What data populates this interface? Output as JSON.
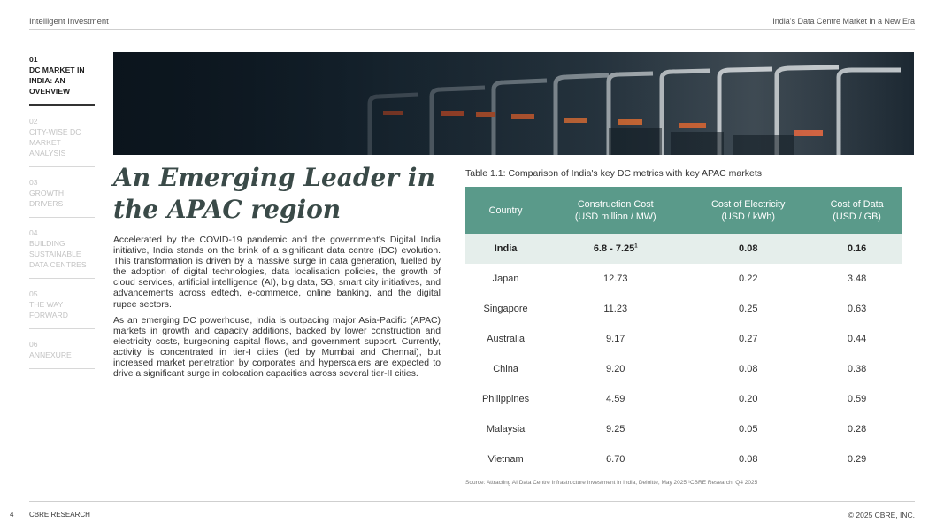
{
  "header": {
    "left": "Intelligent Investment",
    "right": "India's Data Centre Market in a New Era"
  },
  "nav": {
    "items": [
      {
        "num": "01",
        "label": "DC MARKET IN INDIA: AN OVERVIEW"
      },
      {
        "num": "02",
        "label": "CITY-WISE DC MARKET ANALYSIS"
      },
      {
        "num": "03",
        "label": "GROWTH DRIVERS"
      },
      {
        "num": "04",
        "label": "BUILDING SUSTAINABLE DATA CENTRES"
      },
      {
        "num": "05",
        "label": "THE WAY FORWARD"
      },
      {
        "num": "06",
        "label": "ANNEXURE"
      }
    ]
  },
  "title": "An Emerging Leader in the APAC region",
  "paragraphs": [
    "Accelerated by the COVID-19 pandemic and the government's Digital India initiative, India stands on the brink of a significant data centre (DC) evolution. This transformation is driven by a massive surge in data generation, fuelled by the adoption of digital technologies, data localisation policies, the growth of cloud services, artificial intelligence (AI), big data, 5G, smart city initiatives, and advancements across edtech, e-commerce, online banking, and the digital rupee sectors.",
    "As an emerging DC powerhouse, India is outpacing major Asia-Pacific (APAC) markets in growth and capacity additions, backed by lower construction and electricity costs, burgeoning capital flows, and government support. Currently, activity is concentrated in tier-I cities (led by Mumbai and Chennai), but increased market penetration by corporates and hyperscalers are expected to drive a significant surge in colocation capacities across several tier-II cities."
  ],
  "table": {
    "caption": "Table 1.1: Comparison of India's key DC metrics with key APAC markets",
    "headers": [
      {
        "line1": "Country",
        "line2": ""
      },
      {
        "line1": "Construction  Cost",
        "line2": "(USD million / MW)"
      },
      {
        "line1": "Cost of Electricity",
        "line2": "(USD / kWh)"
      },
      {
        "line1": "Cost of Data",
        "line2": "(USD / GB)"
      }
    ],
    "rows": [
      {
        "country": "India",
        "construction": "6.8 - 7.25",
        "sup": "1",
        "electricity": "0.08",
        "data": "0.16"
      },
      {
        "country": "Japan",
        "construction": "12.73",
        "sup": "",
        "electricity": "0.22",
        "data": "3.48"
      },
      {
        "country": "Singapore",
        "construction": "11.23",
        "sup": "",
        "electricity": "0.25",
        "data": "0.63"
      },
      {
        "country": "Australia",
        "construction": "9.17",
        "sup": "",
        "electricity": "0.27",
        "data": "0.44"
      },
      {
        "country": "China",
        "construction": "9.20",
        "sup": "",
        "electricity": "0.08",
        "data": "0.38"
      },
      {
        "country": "Philippines",
        "construction": "4.59",
        "sup": "",
        "electricity": "0.20",
        "data": "0.59"
      },
      {
        "country": "Malaysia",
        "construction": "9.25",
        "sup": "",
        "electricity": "0.05",
        "data": "0.28"
      },
      {
        "country": "Vietnam",
        "construction": "6.70",
        "sup": "",
        "electricity": "0.08",
        "data": "0.29"
      }
    ],
    "source": "Source: Attracting AI Data Centre Infrastructure Investment in India, Deloitte, May 2025 ¹CBRE Research, Q4 2025"
  },
  "footer": {
    "page": "4",
    "left": "CBRE RESEARCH",
    "right": "© 2025 CBRE, INC."
  },
  "colors": {
    "table_header": "#5a9a8a",
    "highlight_row": "#e5eeeb",
    "title": "#3a4a48"
  }
}
